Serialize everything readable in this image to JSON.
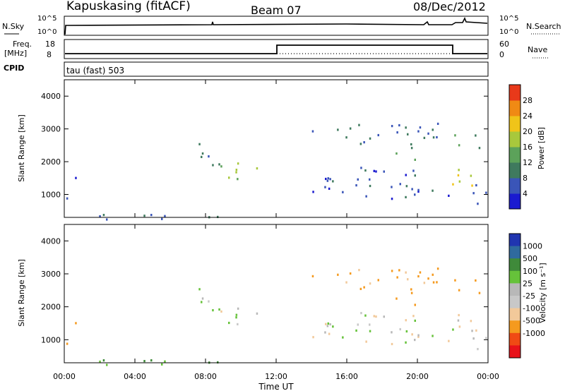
{
  "header": {
    "station": "Kapuskasing (fitACF)",
    "beam": "Beam 07",
    "date": "08/Dec/2012"
  },
  "strips": {
    "nsky": {
      "label": "N.Sky",
      "right_label": "N.Search",
      "left_ticks": [
        "10^5",
        "10^0"
      ],
      "right_ticks": [
        "10^5",
        "10^0"
      ]
    },
    "freq": {
      "label_line1": "Freq.",
      "label_line2": "[MHz]",
      "right_label": "Nave",
      "left_ticks": [
        "18",
        "8"
      ],
      "right_ticks": [
        "60",
        "0"
      ]
    },
    "cpid": {
      "label": "CPID",
      "text": "tau (fast) 503"
    }
  },
  "colors": {
    "line": "#000000",
    "power_scale": [
      "#1a1ad0",
      "#3a55b8",
      "#3f7a5e",
      "#5ca25a",
      "#a8c83c",
      "#f0c419",
      "#f08a14",
      "#e8391a"
    ],
    "velocity_scale": [
      "#e8121a",
      "#f04a14",
      "#f59a1e",
      "#f2c99a",
      "#c8c8c8",
      "#b8b8b8",
      "#66c23a",
      "#3f8a3a",
      "#2f6a9e",
      "#2035b0"
    ]
  },
  "chart_data": [
    {
      "type": "heatmap",
      "name_key": "power",
      "ylabel": "Slant Range [km]",
      "yticks": [
        "1000",
        "2000",
        "3000",
        "4000"
      ],
      "ylim": [
        300,
        4500
      ],
      "colorbar_label": "Power [dB]",
      "colorbar_ticks": [
        "4",
        "8",
        "12",
        "16",
        "20",
        "24",
        "28"
      ],
      "colorbar_range": [
        0,
        32
      ],
      "regions": [
        {
          "t": [
            0.1,
            0.9
          ],
          "r": [
            900,
            1600
          ],
          "v": 5
        },
        {
          "t": [
            6.8,
            8.8
          ],
          "r": [
            1900,
            2600
          ],
          "v": 8
        },
        {
          "t": [
            8.8,
            11.9
          ],
          "r": [
            1500,
            2000
          ],
          "v": 16
        },
        {
          "t": [
            0.3,
            12.0
          ],
          "r": [
            250,
            420
          ],
          "v": 6
        },
        {
          "t": [
            14.0,
            21.8
          ],
          "r": [
            2500,
            3200
          ],
          "v": 8
        },
        {
          "t": [
            14.0,
            21.8
          ],
          "r": [
            900,
            1900
          ],
          "v": 6
        },
        {
          "t": [
            18.5,
            20.0
          ],
          "r": [
            2000,
            2500
          ],
          "v": 14
        },
        {
          "t": [
            21.6,
            23.6
          ],
          "r": [
            1200,
            1900
          ],
          "v": 20
        },
        {
          "t": [
            21.8,
            23.6
          ],
          "r": [
            2400,
            2900
          ],
          "v": 12
        },
        {
          "t": [
            23.0,
            24.0
          ],
          "r": [
            700,
            1600
          ],
          "v": 6
        }
      ]
    },
    {
      "type": "heatmap",
      "name_key": "velocity",
      "ylabel": "Slant Range [km]",
      "yticks": [
        "1000",
        "2000",
        "3000",
        "4000"
      ],
      "ylim": [
        300,
        4500
      ],
      "xlabel": "Time UT",
      "xticks": [
        "00:00",
        "04:00",
        "08:00",
        "12:00",
        "16:00",
        "20:00",
        "00:00"
      ],
      "xlim": [
        0,
        24
      ],
      "colorbar_label": "Velocity [m s⁻¹]",
      "colorbar_ticks": [
        "1000",
        "500",
        "100",
        "25",
        "-25",
        "-100",
        "-500",
        "-1000"
      ],
      "regions": [
        {
          "t": [
            0.1,
            0.9
          ],
          "r": [
            900,
            1600
          ],
          "v": -150
        },
        {
          "t": [
            6.8,
            8.8
          ],
          "r": [
            1900,
            2600
          ],
          "v": 0
        },
        {
          "t": [
            8.8,
            11.9
          ],
          "r": [
            1500,
            2000
          ],
          "v": 0
        },
        {
          "t": [
            0.3,
            12.0
          ],
          "r": [
            250,
            420
          ],
          "v": 80
        },
        {
          "t": [
            14.0,
            21.8
          ],
          "r": [
            2500,
            3200
          ],
          "v": -150
        },
        {
          "t": [
            14.0,
            21.8
          ],
          "r": [
            900,
            1900
          ],
          "v": 0
        },
        {
          "t": [
            18.5,
            20.0
          ],
          "r": [
            2000,
            2500
          ],
          "v": -200
        },
        {
          "t": [
            21.6,
            23.6
          ],
          "r": [
            1200,
            1900
          ],
          "v": 0
        },
        {
          "t": [
            21.8,
            23.6
          ],
          "r": [
            2400,
            2900
          ],
          "v": -200
        },
        {
          "t": [
            23.0,
            24.0
          ],
          "r": [
            700,
            1600
          ],
          "v": 0
        }
      ]
    }
  ]
}
